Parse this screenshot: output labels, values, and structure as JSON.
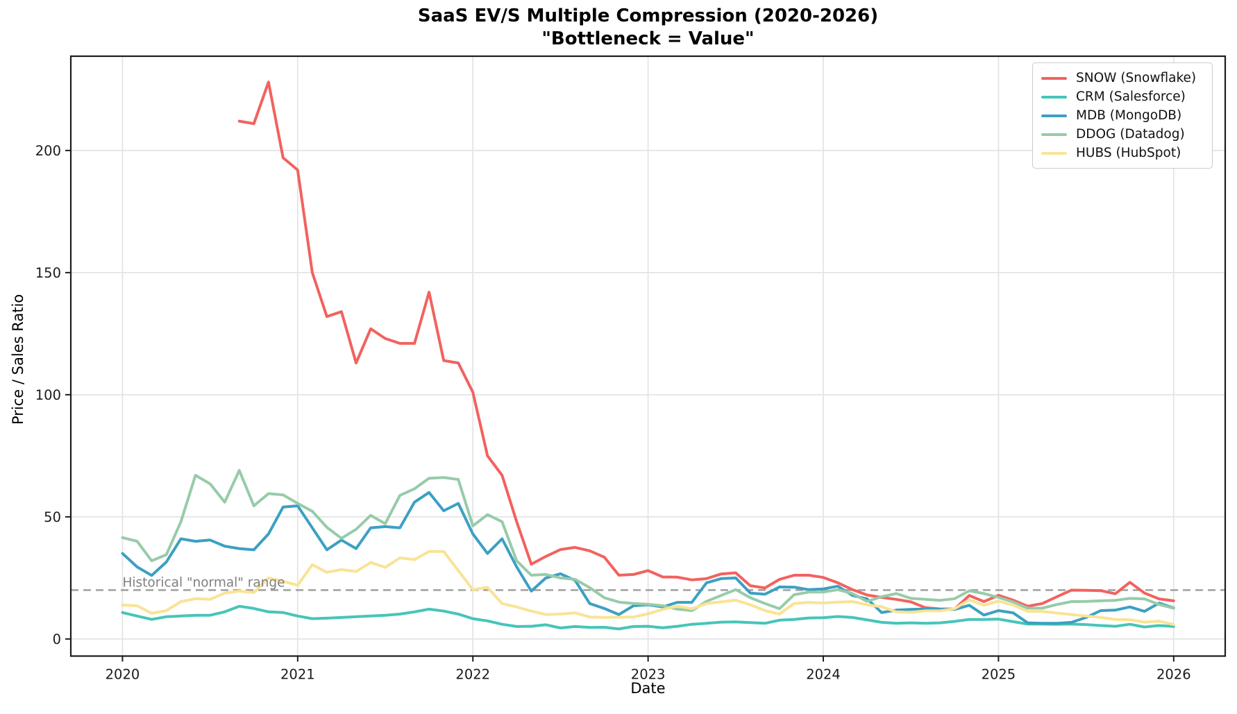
{
  "chart_data": {
    "type": "line",
    "title": "SaaS EV/S Multiple Compression (2020-2026)",
    "subtitle": "\"Bottleneck = Value\"",
    "xlabel": "Date",
    "ylabel": "Price / Sales Ratio",
    "x_start": "2020-01",
    "interval": "monthly",
    "x_ticks": [
      2020,
      2021,
      2022,
      2023,
      2024,
      2025,
      2026
    ],
    "y_ticks": [
      0,
      50,
      100,
      150,
      200
    ],
    "xlim": [
      2019.705,
      2026.294
    ],
    "ylim": [
      -7.0,
      238.6
    ],
    "grid": true,
    "grid_color": "#e4e4e4",
    "legend_position": "upper right",
    "spine_color": "#1c1c1c",
    "threshold_line": {
      "value": 20,
      "style": "dashed",
      "color": "#a3a3a3",
      "label": "Historical \"normal\" range",
      "label_color": "#7f7f7f"
    },
    "series": [
      {
        "name": "SNOW (Snowflake)",
        "ticker": "SNOW",
        "color": "#f2625e",
        "values": [
          null,
          null,
          null,
          null,
          null,
          null,
          null,
          null,
          212,
          211,
          228,
          197,
          192,
          150,
          132,
          134,
          113,
          127,
          123,
          121,
          121,
          142,
          114,
          113,
          101,
          75,
          67,
          48,
          30.6,
          33.8,
          36.6,
          37.5,
          36.1,
          33.5,
          26.1,
          26.4,
          28,
          25.4,
          25.3,
          24.2,
          24.7,
          26.6,
          27.1,
          21.8,
          20.9,
          24.4,
          26.1,
          26.1,
          25.2,
          23,
          20.2,
          18,
          17,
          16.2,
          15.2,
          12.8,
          12.3,
          12.3,
          17.8,
          15.3,
          17.9,
          15.9,
          13.4,
          14.5,
          17.3,
          20,
          19.9,
          19.8,
          18.5,
          23.2,
          18.8,
          16.4,
          15.6
        ]
      },
      {
        "name": "CRM (Salesforce)",
        "ticker": "CRM",
        "color": "#46c5b9",
        "values": [
          10.8,
          9.4,
          8,
          9.1,
          9.4,
          9.7,
          9.7,
          11.1,
          13.4,
          12.5,
          11.1,
          10.8,
          9.4,
          8.3,
          8.5,
          8.8,
          9.1,
          9.4,
          9.7,
          10.2,
          11.1,
          12.2,
          11.4,
          10.2,
          8.3,
          7.4,
          6,
          5.1,
          5.2,
          5.8,
          4.5,
          5.1,
          4.7,
          4.8,
          4.1,
          5.1,
          5.2,
          4.6,
          5.2,
          6,
          6.4,
          6.9,
          7,
          6.7,
          6.4,
          7.7,
          8,
          8.6,
          8.7,
          9.2,
          8.8,
          7.8,
          6.8,
          6.4,
          6.6,
          6.4,
          6.6,
          7.2,
          8,
          8,
          8.1,
          7.1,
          6.1,
          6.1,
          6,
          6.1,
          5.9,
          5.5,
          5.2,
          6,
          4.9,
          5.5,
          5.1
        ]
      },
      {
        "name": "MDB (MongoDB)",
        "ticker": "MDB",
        "color": "#3ca0c2",
        "values": [
          35,
          29.5,
          26,
          31.5,
          41,
          40,
          40.5,
          38,
          37,
          36.5,
          43,
          54,
          54.5,
          45.5,
          36.5,
          40.5,
          37,
          45.5,
          46,
          45.5,
          56,
          60,
          52.5,
          55.5,
          43,
          35,
          41,
          29.5,
          19.6,
          25,
          26.7,
          24,
          14.5,
          12.5,
          10,
          13.6,
          14,
          13.1,
          15,
          15,
          23,
          24.7,
          25,
          18.8,
          18.3,
          21.3,
          21.2,
          20.2,
          20.5,
          21.6,
          17.8,
          16.4,
          10.8,
          11.8,
          12.1,
          12.3,
          12.1,
          12.1,
          13.8,
          9.8,
          11.6,
          10.7,
          6.6,
          6.4,
          6.4,
          6.8,
          8.8,
          11.6,
          11.8,
          13.1,
          11.3,
          14.7,
          12.7
        ]
      },
      {
        "name": "DDOG (Datadog)",
        "ticker": "DDOG",
        "color": "#97cba9",
        "values": [
          41.5,
          40,
          32,
          34.5,
          48,
          67,
          63.5,
          56,
          69,
          54.5,
          59.5,
          59,
          55.5,
          52.3,
          45.7,
          41.2,
          44.9,
          50.6,
          47.2,
          58.8,
          61.5,
          65.8,
          66.1,
          65.3,
          46.3,
          50.9,
          48,
          32,
          26.1,
          26.4,
          25,
          24.4,
          21,
          16.9,
          15.1,
          14.5,
          14.2,
          13.6,
          12.2,
          11.6,
          15.4,
          17.8,
          20.2,
          16.9,
          14.5,
          12.4,
          18.1,
          19.2,
          19.2,
          20.2,
          18.6,
          15.4,
          17.3,
          18.6,
          16.6,
          16.2,
          15.8,
          16.5,
          19.7,
          18.6,
          17,
          15.2,
          12.6,
          12.6,
          14.1,
          15.3,
          15.4,
          15.6,
          15.8,
          16.6,
          16.4,
          14.1,
          12.6
        ]
      },
      {
        "name": "HUBS (HubSpot)",
        "ticker": "HUBS",
        "color": "#f9e395",
        "values": [
          13.9,
          13.6,
          10.5,
          11.6,
          15.3,
          16.5,
          16.2,
          18.8,
          19.6,
          19,
          25,
          23.6,
          22,
          30.4,
          27.3,
          28.4,
          27.6,
          31.3,
          29.3,
          33.2,
          32.5,
          35.8,
          35.8,
          28,
          20.2,
          21.1,
          14.5,
          13.1,
          11.4,
          10,
          10.2,
          10.7,
          9,
          8.8,
          8.9,
          9,
          10.3,
          12.1,
          13.4,
          12.4,
          14.5,
          15.2,
          15.9,
          14,
          11.6,
          10.2,
          14.5,
          15,
          14.7,
          15.1,
          15.3,
          14,
          13.2,
          11.1,
          10.9,
          11.5,
          11.5,
          12.4,
          16,
          13.8,
          15.5,
          13.9,
          11.3,
          11.3,
          10.6,
          10,
          9.4,
          8.8,
          8,
          7.9,
          6.9,
          7.3,
          5.9
        ]
      }
    ]
  }
}
